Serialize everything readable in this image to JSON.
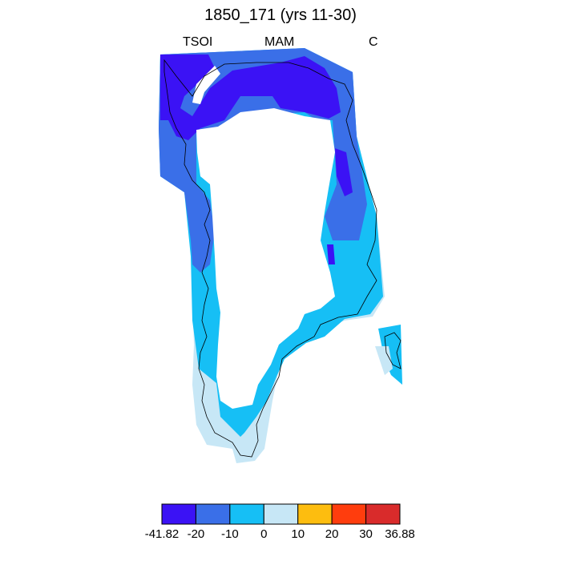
{
  "plot": {
    "title": "1850_171 (yrs 11-30)",
    "left_label": "TSOI",
    "center_label": "MAM",
    "right_label": "C"
  },
  "colorbar": {
    "colors": [
      "#3b12f5",
      "#3a6fe8",
      "#16bff5",
      "#c7e7f6",
      "#fdbd0f",
      "#ff3d0d",
      "#d92b2b"
    ],
    "tick_labels": [
      "-41.82",
      "-20",
      "-10",
      "0",
      "10",
      "20",
      "30",
      "36.88"
    ]
  },
  "map": {
    "region": "Greenland",
    "variable": "TSOI",
    "season": "MAM",
    "units": "C"
  }
}
